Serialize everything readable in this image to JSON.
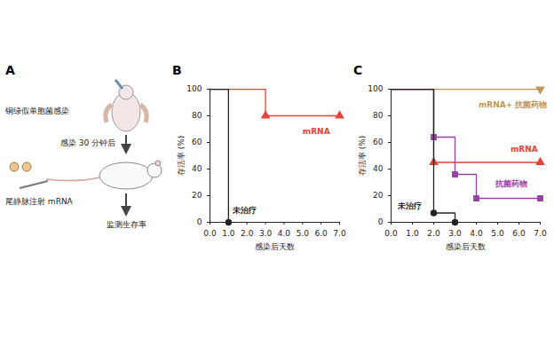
{
  "diagram": {
    "panel_label": "A",
    "steps": [
      "铜绿假单胞菌感染",
      "感染 30 分钟后",
      "尾静脉注射 mRNA",
      "监测生存率"
    ]
  },
  "chart_data": [
    {
      "type": "line",
      "panel_label": "B",
      "x_label": "感染后天数",
      "y_label": "存活率 (%)",
      "x": [
        0,
        1,
        2,
        3,
        4,
        5,
        6,
        7
      ],
      "xlim": [
        0,
        7
      ],
      "xticks": [
        0,
        1,
        2,
        3,
        4,
        5,
        6,
        7
      ],
      "ylim": [
        0,
        100
      ],
      "yticks": [
        0,
        20,
        40,
        60,
        80,
        100
      ],
      "grid": false,
      "series": [
        {
          "name": "mRNA",
          "color": "#e8433a",
          "marker": "triangle",
          "values": [
            100,
            100,
            100,
            80,
            80,
            80,
            80,
            80
          ],
          "label_position": [
            5.0,
            68
          ]
        },
        {
          "name": "未治疗",
          "color": "#222222",
          "marker": "circle",
          "values": [
            100,
            0,
            null,
            null,
            null,
            null,
            null,
            null
          ],
          "label_position": [
            1.2,
            9
          ]
        }
      ]
    },
    {
      "type": "line",
      "panel_label": "C",
      "x_label": "感染后天数",
      "y_label": "存活率 (%)",
      "x": [
        0,
        1,
        2,
        3,
        4,
        5,
        6,
        7
      ],
      "xlim": [
        0,
        7
      ],
      "xticks": [
        0,
        1,
        2,
        3,
        4,
        5,
        6,
        7
      ],
      "ylim": [
        0,
        100
      ],
      "yticks": [
        0,
        20,
        40,
        60,
        80,
        100
      ],
      "grid": false,
      "series": [
        {
          "name": "mRNA+ 抗菌药物",
          "color": "#c0955a",
          "marker": "triangle-down",
          "values": [
            100,
            100,
            100,
            100,
            100,
            100,
            100,
            100
          ],
          "label_position": [
            4.1,
            88
          ]
        },
        {
          "name": "mRNA",
          "color": "#e8433a",
          "marker": "triangle",
          "values": [
            100,
            100,
            45,
            45,
            45,
            45,
            45,
            45
          ],
          "label_position": [
            5.6,
            55
          ]
        },
        {
          "name": "抗菌药物",
          "color": "#9b3fa8",
          "marker": "square",
          "values": [
            100,
            100,
            64,
            36,
            18,
            18,
            18,
            18
          ],
          "label_position": [
            4.9,
            29
          ]
        },
        {
          "name": "未治疗",
          "color": "#222222",
          "marker": "circle",
          "values": [
            100,
            100,
            7,
            0,
            null,
            null,
            null,
            null
          ],
          "label_position": [
            0.3,
            12
          ]
        }
      ]
    }
  ]
}
